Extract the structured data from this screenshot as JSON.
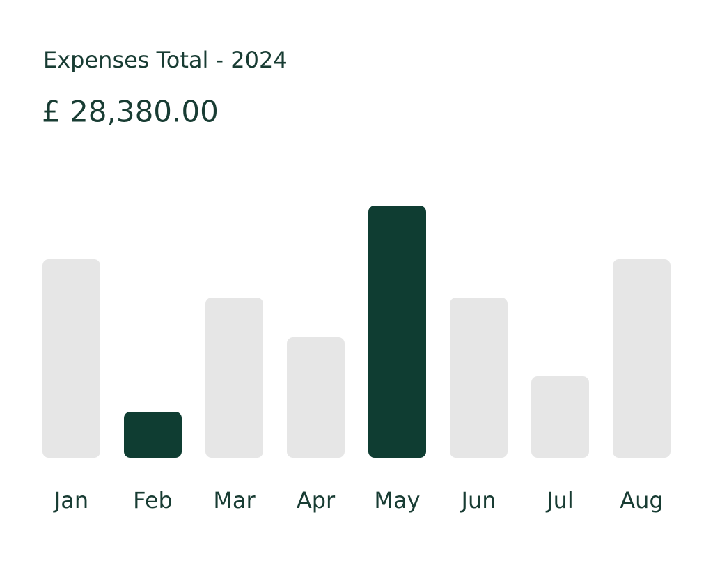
{
  "chart_data": {
    "type": "bar",
    "title": "Expenses Total - 2024",
    "total": "£ 28,380.00",
    "categories": [
      "Jan",
      "Feb",
      "Mar",
      "Apr",
      "May",
      "Jun",
      "Jul",
      "Aug"
    ],
    "values": [
      285,
      66,
      230,
      173,
      362,
      230,
      117,
      285
    ],
    "colors": [
      "#e6e6e6",
      "#0f3d32",
      "#e6e6e6",
      "#e6e6e6",
      "#0f3d32",
      "#e6e6e6",
      "#e6e6e6",
      "#e6e6e6"
    ],
    "ylim": [
      0,
      362
    ]
  }
}
